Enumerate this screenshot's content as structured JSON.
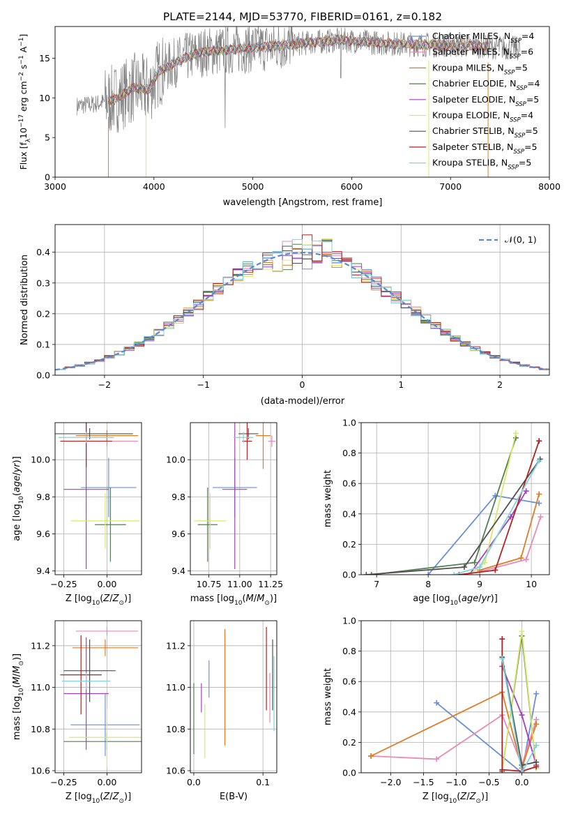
{
  "figure_title": "PLATE=2144, MJD=53770, FIBERID=0161, z=0.182",
  "colors": {
    "Chabrier MILES": "#6a8fd8",
    "Salpeter MILES": "#e98bb4",
    "Kroupa MILES": "#e07b22",
    "Chabrier ELODIE": "#4f7f4f",
    "Salpeter ELODIE": "#a53fbf",
    "Kroupa ELODIE": "#d9e86a",
    "Chabrier STELIB": "#505050",
    "Salpeter STELIB": "#b22222",
    "Kroupa STELIB": "#7fd3df",
    "observed": "#808080",
    "normal_curve": "#5b86d6"
  },
  "chart_data": [
    {
      "type": "line",
      "id": "spectrum",
      "xlabel": "wavelength [Angstrom, rest frame]",
      "ylabel": "Flux [f_λ10^-17 erg cm^-2 s^-1 A^-1]",
      "xlim": [
        3000,
        8000
      ],
      "ylim": [
        0,
        19
      ],
      "xticks": [
        3000,
        4000,
        5000,
        6000,
        7000,
        8000
      ],
      "yticks": [
        0,
        5,
        10,
        15
      ],
      "legend_position": "top-right",
      "legend": [
        {
          "model": "Chabrier MILES",
          "nssp": "4"
        },
        {
          "model": "Salpeter MILES",
          "nssp": "6"
        },
        {
          "model": "Kroupa MILES",
          "nssp": "5"
        },
        {
          "model": "Chabrier ELODIE",
          "nssp": "4"
        },
        {
          "model": "Salpeter ELODIE",
          "nssp": "5"
        },
        {
          "model": "Kroupa ELODIE",
          "nssp": "4"
        },
        {
          "model": "Chabrier STELIB",
          "nssp": "5"
        },
        {
          "model": "Salpeter STELIB",
          "nssp": "5"
        },
        {
          "model": "Kroupa STELIB",
          "nssp": "5"
        }
      ],
      "continuum": {
        "x": [
          3220,
          3400,
          3600,
          3800,
          3950,
          4050,
          4150,
          4300,
          4500,
          4700,
          5000,
          5300,
          5600,
          5900,
          6200,
          6500,
          6800,
          7200,
          7700
        ],
        "y": [
          9.0,
          9.2,
          9.8,
          11.3,
          11.0,
          13.3,
          14.0,
          15.0,
          15.8,
          16.0,
          16.3,
          16.6,
          17.0,
          17.3,
          17.0,
          16.8,
          16.7,
          16.6,
          16.2
        ]
      },
      "model_range_x": [
        3540,
        7380
      ]
    },
    {
      "type": "line",
      "id": "residual_histogram",
      "xlabel": "(data-model)/error",
      "ylabel": "Normed distribution",
      "xlim": [
        -2.5,
        2.5
      ],
      "ylim": [
        0,
        0.49
      ],
      "xticks": [
        -2,
        -1,
        0,
        1,
        2
      ],
      "yticks": [
        0.0,
        0.1,
        0.2,
        0.3,
        0.4
      ],
      "grid": true,
      "legend_position": "top-right",
      "legend_label": "𝒩(0, 1)",
      "bin_width": 0.1
    },
    {
      "type": "scatter",
      "id": "age_vs_Z",
      "xlabel": "Z [log10(Z/Z⊙)]",
      "ylabel": "age [log10(age/yr)]",
      "xlim": [
        -0.3,
        0.2
      ],
      "ylim": [
        9.38,
        10.2
      ],
      "xticks": [
        -0.25,
        0.0
      ],
      "yticks": [
        9.4,
        9.6,
        9.8,
        10.0
      ],
      "grid": true,
      "points": [
        {
          "model": "Chabrier MILES",
          "x": 0.01,
          "y": 9.85,
          "xerr": 0.16,
          "yerr": 0.16
        },
        {
          "model": "Salpeter MILES",
          "x": 0.0,
          "y": 10.1,
          "xerr": 0.18,
          "yerr": 0.03
        },
        {
          "model": "Kroupa MILES",
          "x": 0.0,
          "y": 10.13,
          "xerr": 0.18,
          "yerr": 0.03
        },
        {
          "model": "Chabrier ELODIE",
          "x": 0.02,
          "y": 9.65,
          "xerr": 0.09,
          "yerr": 0.2
        },
        {
          "model": "Salpeter ELODIE",
          "x": -0.12,
          "y": 9.84,
          "xerr": 0.13,
          "yerr": 0.43
        },
        {
          "model": "Kroupa ELODIE",
          "x": -0.01,
          "y": 9.67,
          "xerr": 0.2,
          "yerr": 0.15
        },
        {
          "model": "Chabrier STELIB",
          "x": -0.1,
          "y": 10.14,
          "xerr": 0.25,
          "yerr": 0.03
        },
        {
          "model": "Salpeter STELIB",
          "x": -0.12,
          "y": 10.1,
          "xerr": 0.15,
          "yerr": 0.14
        },
        {
          "model": "Kroupa STELIB",
          "x": -0.12,
          "y": 10.12,
          "xerr": 0.16,
          "yerr": 0.03
        }
      ]
    },
    {
      "type": "scatter",
      "id": "age_vs_mass",
      "xlabel": "mass [log10(M/M⊙)]",
      "ylabel": "",
      "xlim": [
        10.6,
        11.3
      ],
      "ylim": [
        9.38,
        10.2
      ],
      "xticks": [
        10.75,
        11.0,
        11.25
      ],
      "yticks": [
        9.4,
        9.6,
        9.8,
        10.0
      ],
      "grid": true,
      "points": [
        {
          "model": "Chabrier MILES",
          "x": 10.96,
          "y": 9.85,
          "xerr": 0.18,
          "yerr": 0.16
        },
        {
          "model": "Salpeter MILES",
          "x": 11.26,
          "y": 10.1,
          "xerr": 0.03,
          "yerr": 0.03
        },
        {
          "model": "Kroupa MILES",
          "x": 11.19,
          "y": 10.13,
          "xerr": 0.06,
          "yerr": 0.18
        },
        {
          "model": "Chabrier ELODIE",
          "x": 10.74,
          "y": 9.65,
          "xerr": 0.08,
          "yerr": 0.2
        },
        {
          "model": "Salpeter ELODIE",
          "x": 10.96,
          "y": 9.84,
          "xerr": 0.1,
          "yerr": 0.43
        },
        {
          "model": "Kroupa ELODIE",
          "x": 10.76,
          "y": 9.67,
          "xerr": 0.13,
          "yerr": 0.15
        },
        {
          "model": "Chabrier STELIB",
          "x": 11.07,
          "y": 10.14,
          "xerr": 0.08,
          "yerr": 0.03
        },
        {
          "model": "Salpeter STELIB",
          "x": 11.06,
          "y": 10.1,
          "xerr": 0.04,
          "yerr": 0.1
        },
        {
          "model": "Kroupa STELIB",
          "x": 11.03,
          "y": 10.12,
          "xerr": 0.08,
          "yerr": 0.03
        }
      ]
    },
    {
      "type": "line",
      "id": "mass_weight_vs_age",
      "xlabel": "age [log10(age/yr)]",
      "ylabel": "mass weight",
      "xlim": [
        6.7,
        10.35
      ],
      "ylim": [
        0,
        1.0
      ],
      "xticks": [
        7,
        8,
        9,
        10
      ],
      "yticks": [
        0.0,
        0.2,
        0.4,
        0.6,
        0.8,
        1.0
      ],
      "grid": true,
      "series": [
        {
          "model": "Chabrier MILES",
          "x": [
            8.0,
            9.3,
            10.15
          ],
          "y": [
            0.0,
            0.52,
            0.47
          ]
        },
        {
          "model": "Salpeter MILES",
          "x": [
            9.0,
            9.9,
            10.18
          ],
          "y": [
            0.02,
            0.1,
            0.38
          ]
        },
        {
          "model": "Kroupa MILES",
          "x": [
            9.0,
            9.8,
            10.15
          ],
          "y": [
            0.03,
            0.11,
            0.53
          ]
        },
        {
          "model": "Chabrier ELODIE",
          "x": [
            6.9,
            8.9,
            9.7
          ],
          "y": [
            0.0,
            0.08,
            0.9
          ]
        },
        {
          "model": "Salpeter ELODIE",
          "x": [
            8.8,
            9.6,
            9.9
          ],
          "y": [
            0.0,
            0.38,
            0.55
          ]
        },
        {
          "model": "Kroupa ELODIE",
          "x": [
            8.8,
            9.1,
            9.7
          ],
          "y": [
            0.0,
            0.08,
            0.93
          ]
        },
        {
          "model": "Chabrier STELIB",
          "x": [
            6.8,
            8.7,
            10.17
          ],
          "y": [
            0.0,
            0.05,
            0.76
          ]
        },
        {
          "model": "Salpeter STELIB",
          "x": [
            8.6,
            9.3,
            10.15
          ],
          "y": [
            0.0,
            0.03,
            0.88
          ]
        },
        {
          "model": "Kroupa STELIB",
          "x": [
            8.5,
            9.0,
            10.15
          ],
          "y": [
            0.0,
            0.05,
            0.75
          ]
        }
      ]
    },
    {
      "type": "scatter",
      "id": "mass_vs_Z",
      "xlabel": "Z [log10(Z/Z⊙)]",
      "ylabel": "mass [log10(M/M⊙)]",
      "xlim": [
        -0.3,
        0.2
      ],
      "ylim": [
        10.59,
        11.32
      ],
      "xticks": [
        -0.25,
        0.0
      ],
      "yticks": [
        10.6,
        10.8,
        11.0,
        11.2
      ],
      "grid": true,
      "points": [
        {
          "model": "Chabrier MILES",
          "x": -0.01,
          "y": 10.82,
          "xerr": 0.2,
          "yerr": 0.15
        },
        {
          "model": "Salpeter MILES",
          "x": 0.0,
          "y": 11.27,
          "xerr": 0.18,
          "yerr": 0.02
        },
        {
          "model": "Kroupa MILES",
          "x": -0.01,
          "y": 11.19,
          "xerr": 0.19,
          "yerr": 0.04
        },
        {
          "model": "Chabrier ELODIE",
          "x": 0.0,
          "y": 10.74,
          "xerr": 0.25,
          "yerr": 0.04
        },
        {
          "model": "Salpeter ELODIE",
          "x": -0.12,
          "y": 10.97,
          "xerr": 0.13,
          "yerr": 0.27
        },
        {
          "model": "Kroupa ELODIE",
          "x": 0.0,
          "y": 10.76,
          "xerr": 0.22,
          "yerr": 0.14
        },
        {
          "model": "Chabrier STELIB",
          "x": -0.1,
          "y": 11.08,
          "xerr": 0.15,
          "yerr": 0.15
        },
        {
          "model": "Salpeter STELIB",
          "x": -0.15,
          "y": 11.06,
          "xerr": 0.12,
          "yerr": 0.19
        },
        {
          "model": "Kroupa STELIB",
          "x": -0.12,
          "y": 11.03,
          "xerr": 0.14,
          "yerr": 0.04
        }
      ]
    },
    {
      "type": "scatter",
      "id": "mass_vs_ebv",
      "xlabel": "E(B-V)",
      "ylabel": "",
      "xlim": [
        -0.005,
        0.12
      ],
      "ylim": [
        10.59,
        11.32
      ],
      "xticks": [
        0.0,
        0.1
      ],
      "yticks": [
        10.6,
        10.8,
        11.0,
        11.2
      ],
      "grid": true,
      "points": [
        {
          "model": "Chabrier MILES",
          "x": 0.022,
          "y": 11.04,
          "yerr": 0.09
        },
        {
          "model": "Salpeter MILES",
          "x": 0.11,
          "y": 10.95,
          "yerr": 0.12
        },
        {
          "model": "Kroupa MILES",
          "x": 0.045,
          "y": 11.0,
          "yerr": 0.28
        },
        {
          "model": "Chabrier ELODIE",
          "x": 0.0,
          "y": 10.85,
          "yerr": 0.17
        },
        {
          "model": "Salpeter ELODIE",
          "x": 0.011,
          "y": 10.95,
          "yerr": 0.07
        },
        {
          "model": "Kroupa ELODIE",
          "x": 0.016,
          "y": 10.79,
          "yerr": 0.13
        },
        {
          "model": "Chabrier STELIB",
          "x": 0.114,
          "y": 11.06,
          "yerr": 0.17
        },
        {
          "model": "Salpeter STELIB",
          "x": 0.105,
          "y": 11.09,
          "yerr": 0.2
        },
        {
          "model": "Kroupa STELIB",
          "x": 0.116,
          "y": 10.97,
          "yerr": 0.18
        }
      ]
    },
    {
      "type": "line",
      "id": "mass_weight_vs_Z",
      "xlabel": "Z [log10(Z/Z⊙)]",
      "ylabel": "mass weight",
      "xlim": [
        -2.45,
        0.42
      ],
      "ylim": [
        0,
        1.0
      ],
      "xticks": [
        -2.0,
        -1.5,
        -1.0,
        -0.5,
        0.0
      ],
      "yticks": [
        0.0,
        0.2,
        0.4,
        0.6,
        0.8,
        1.0
      ],
      "grid": true,
      "series": [
        {
          "model": "Chabrier MILES",
          "x": [
            -1.3,
            0.0,
            0.22
          ],
          "y": [
            0.46,
            0.0,
            0.52
          ]
        },
        {
          "model": "Salpeter MILES",
          "x": [
            -2.3,
            -1.3,
            -0.3,
            0.0,
            0.22
          ],
          "y": [
            0.11,
            0.09,
            0.38,
            0.05,
            0.35
          ]
        },
        {
          "model": "Kroupa MILES",
          "x": [
            -2.3,
            -0.3,
            0.0,
            0.22
          ],
          "y": [
            0.11,
            0.53,
            0.03,
            0.32
          ]
        },
        {
          "model": "Chabrier ELODIE",
          "x": [
            -0.3,
            0.0,
            0.22
          ],
          "y": [
            0.01,
            0.9,
            0.03
          ]
        },
        {
          "model": "Salpeter ELODIE",
          "x": [
            -0.3,
            0.0,
            0.22
          ],
          "y": [
            0.7,
            0.38,
            0.05
          ]
        },
        {
          "model": "Kroupa ELODIE",
          "x": [
            -0.3,
            0.0,
            0.22
          ],
          "y": [
            0.0,
            0.93,
            0.03
          ]
        },
        {
          "model": "Chabrier STELIB",
          "x": [
            -0.3,
            0.0,
            0.22
          ],
          "y": [
            0.76,
            0.05,
            0.07
          ]
        },
        {
          "model": "Salpeter STELIB",
          "x": [
            -0.3,
            -0.3,
            0.0,
            0.22
          ],
          "y": [
            0.88,
            0.02,
            0.01,
            0.04
          ]
        },
        {
          "model": "Kroupa STELIB",
          "x": [
            -0.3,
            0.0,
            0.22
          ],
          "y": [
            0.75,
            0.0,
            0.18
          ]
        }
      ]
    }
  ]
}
